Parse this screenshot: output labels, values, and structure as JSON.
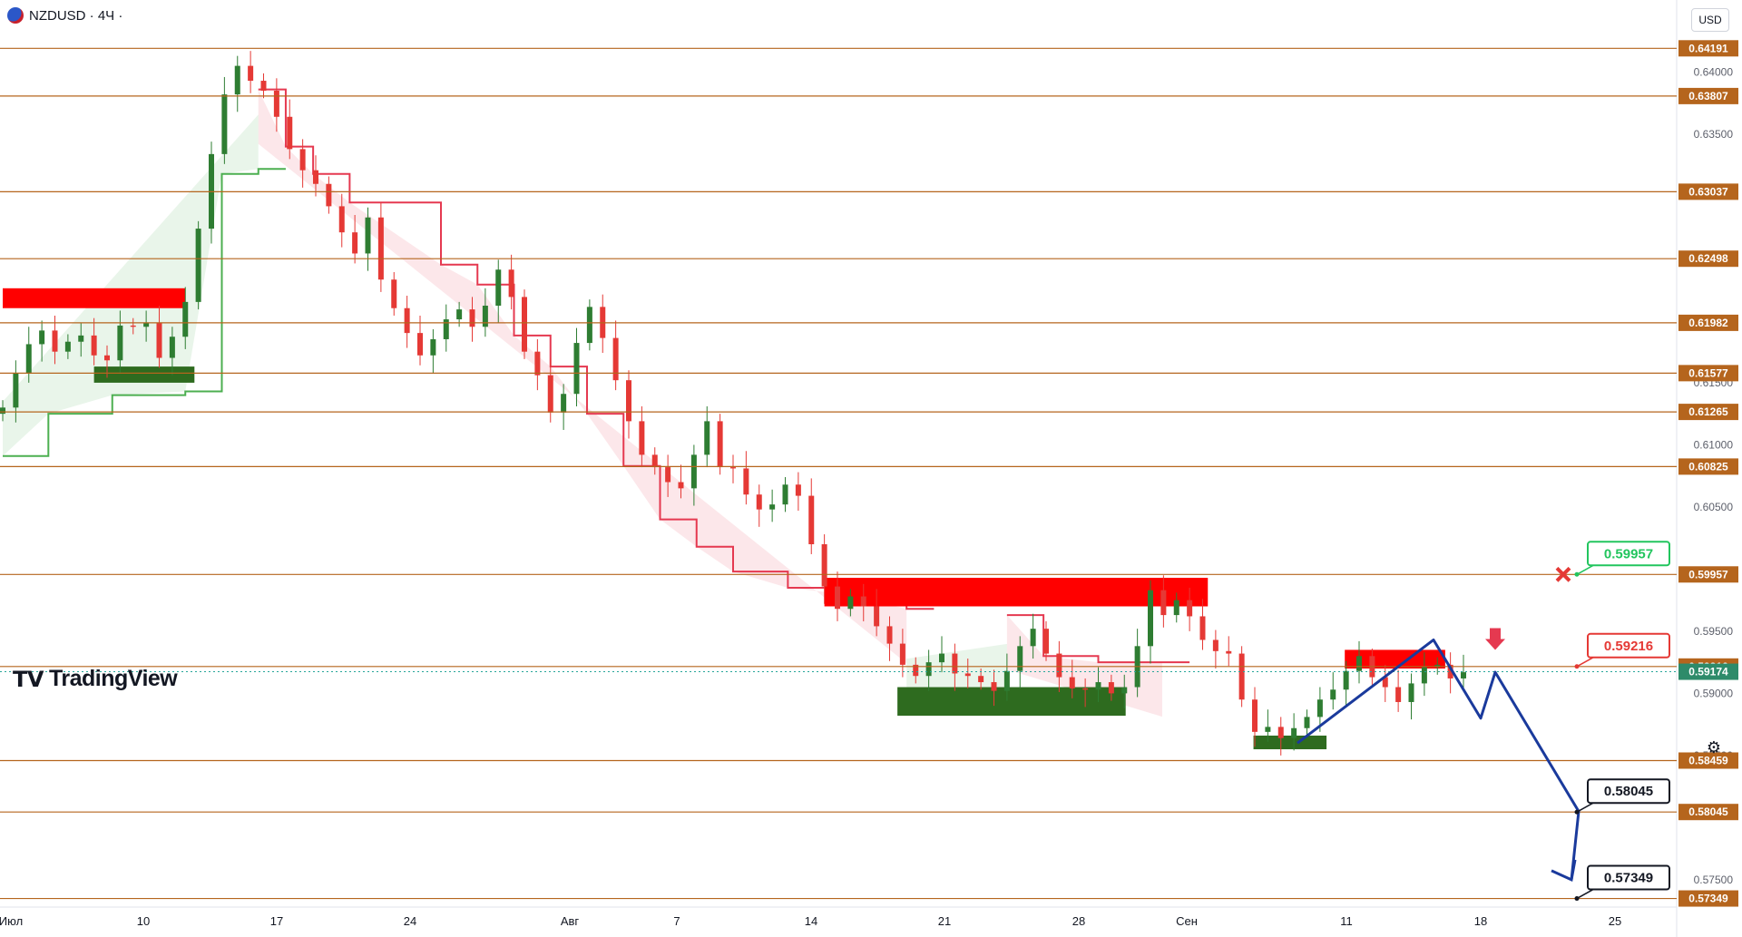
{
  "header": {
    "symbol": "NZDUSD · 4Ч ·"
  },
  "currency_label": "USD",
  "logo": {
    "mark": "17",
    "text": "TradingView"
  },
  "colors": {
    "level_line": "#b5651d",
    "level_tag": "#b5651d",
    "bull": "#2e7d32",
    "bear": "#e53935",
    "trend_down": "#e53950",
    "trend_up": "#4caf50",
    "projection": "#1a3a9c",
    "supply_zone": "#ff0000",
    "demand_zone": "#2e6b1f"
  },
  "chart_data": {
    "type": "candlestick",
    "symbol": "NZDUSD",
    "timeframe": "4Ч",
    "y_range": [
      0.5728,
      0.6458
    ],
    "y_ticks": [
      "0.64000",
      "0.63500",
      "0.61500",
      "0.61000",
      "0.60500",
      "0.59500",
      "0.59000",
      "0.58500",
      "0.57500"
    ],
    "x_labels": [
      "Июл",
      "10",
      "17",
      "24",
      "Авг",
      "7",
      "14",
      "21",
      "28",
      "Сен",
      "11",
      "18",
      "25"
    ],
    "level_lines": [
      0.64191,
      0.63807,
      0.63037,
      0.62498,
      0.61982,
      0.61577,
      0.61265,
      0.60825,
      0.59957,
      0.59216,
      0.58459,
      0.58045,
      0.57349
    ],
    "level_labels": [
      "0.64191",
      "0.63807",
      "0.63037",
      "0.62498",
      "0.61982",
      "0.61577",
      "0.61265",
      "0.60825",
      "0.59957",
      "0.59216",
      "0.58459",
      "0.58045",
      "0.57349"
    ],
    "current_price": {
      "value": 0.59174,
      "label": "0.59174"
    },
    "close_path": [
      0.613,
      0.6158,
      0.6181,
      0.6192,
      0.6175,
      0.6183,
      0.6188,
      0.6172,
      0.6168,
      0.6196,
      0.6195,
      0.6198,
      0.617,
      0.6187,
      0.6215,
      0.6274,
      0.6334,
      0.6382,
      0.6405,
      0.6393,
      0.6385,
      0.6364,
      0.6338,
      0.6321,
      0.631,
      0.6292,
      0.6271,
      0.6254,
      0.6283,
      0.6233,
      0.621,
      0.619,
      0.6172,
      0.6185,
      0.6201,
      0.6209,
      0.6195,
      0.6212,
      0.6241,
      0.6219,
      0.6175,
      0.6156,
      0.6126,
      0.6141,
      0.6182,
      0.6211,
      0.6186,
      0.6152,
      0.6119,
      0.6092,
      0.6082,
      0.607,
      0.6065,
      0.6092,
      0.6119,
      0.6082,
      0.6081,
      0.606,
      0.6048,
      0.6052,
      0.6068,
      0.6059,
      0.602,
      0.5986,
      0.5968,
      0.5978,
      0.597,
      0.5954,
      0.594,
      0.5923,
      0.5914,
      0.5925,
      0.5932,
      0.5916,
      0.5914,
      0.5909,
      0.5902,
      0.5918,
      0.5938,
      0.5952,
      0.5932,
      0.5913,
      0.5904,
      0.5903,
      0.5909,
      0.59,
      0.5905,
      0.5938,
      0.5983,
      0.5963,
      0.5975,
      0.5962,
      0.5943,
      0.5934,
      0.5932,
      0.5895,
      0.5869,
      0.5873,
      0.5864,
      0.5872,
      0.5881,
      0.5895,
      0.5903,
      0.5918,
      0.593,
      0.5913,
      0.5905,
      0.5893,
      0.5908,
      0.5921,
      0.5923,
      0.5912,
      0.5917
    ],
    "trail_stop": {
      "segments": [
        {
          "dir": "up",
          "points": [
            [
              0,
              0.6091
            ],
            [
              5,
              0.6125
            ],
            [
              12,
              0.614
            ],
            [
              20,
              0.6143
            ],
            [
              24,
              0.6318
            ],
            [
              28,
              0.6322
            ]
          ]
        },
        {
          "dir": "down",
          "points": [
            [
              28,
              0.6386
            ],
            [
              31,
              0.634
            ],
            [
              34,
              0.6318
            ],
            [
              38,
              0.6295
            ],
            [
              48,
              0.6245
            ],
            [
              52,
              0.6229
            ],
            [
              56,
              0.6188
            ],
            [
              60,
              0.6163
            ],
            [
              64,
              0.6125
            ],
            [
              68,
              0.6083
            ],
            [
              72,
              0.604
            ],
            [
              76,
              0.6018
            ],
            [
              80,
              0.5998
            ],
            [
              86,
              0.5985
            ],
            [
              92,
              0.598
            ],
            [
              99,
              0.5968
            ]
          ]
        },
        {
          "dir": "up",
          "points": [
            [
              99,
              0.5884
            ],
            [
              102,
              0.5891
            ],
            [
              110,
              0.5896
            ]
          ]
        },
        {
          "dir": "down",
          "points": [
            [
              110,
              0.5963
            ],
            [
              114,
              0.593
            ],
            [
              120,
              0.5925
            ],
            [
              127,
              0.5925
            ]
          ]
        }
      ]
    },
    "zones": [
      {
        "type": "supply",
        "from": 0,
        "to": 20,
        "high": 0.6226,
        "low": 0.621
      },
      {
        "type": "demand",
        "from": 10,
        "to": 21,
        "high": 0.6163,
        "low": 0.615
      },
      {
        "type": "supply",
        "from": 90,
        "to": 132,
        "high": 0.5993,
        "low": 0.597
      },
      {
        "type": "demand",
        "from": 98,
        "to": 123,
        "high": 0.5905,
        "low": 0.5882
      },
      {
        "type": "supply",
        "from": 147,
        "to": 158,
        "high": 0.5935,
        "low": 0.592
      },
      {
        "type": "demand",
        "from": 137,
        "to": 145,
        "high": 0.5866,
        "low": 0.5855
      }
    ],
    "projection_path": [
      [
        0.586,
        0.586
      ],
      [
        0.5943,
        0.5943
      ],
      [
        0.588,
        0.588
      ],
      [
        0.5917,
        0.5917
      ],
      [
        0.5805,
        0.5805
      ],
      [
        0.575,
        0.575
      ]
    ],
    "callouts": [
      {
        "label": "0.59957",
        "value": 0.59957,
        "color": "green"
      },
      {
        "label": "0.59216",
        "value": 0.59216,
        "color": "red"
      },
      {
        "label": "0.58045",
        "value": 0.58045,
        "color": "black"
      },
      {
        "label": "0.57349",
        "value": 0.57349,
        "color": "black"
      }
    ],
    "markers": [
      {
        "type": "cross",
        "value": 0.59957,
        "color": "#e53935"
      },
      {
        "type": "down-arrow",
        "value": 0.5935,
        "color": "#e53950"
      }
    ]
  }
}
